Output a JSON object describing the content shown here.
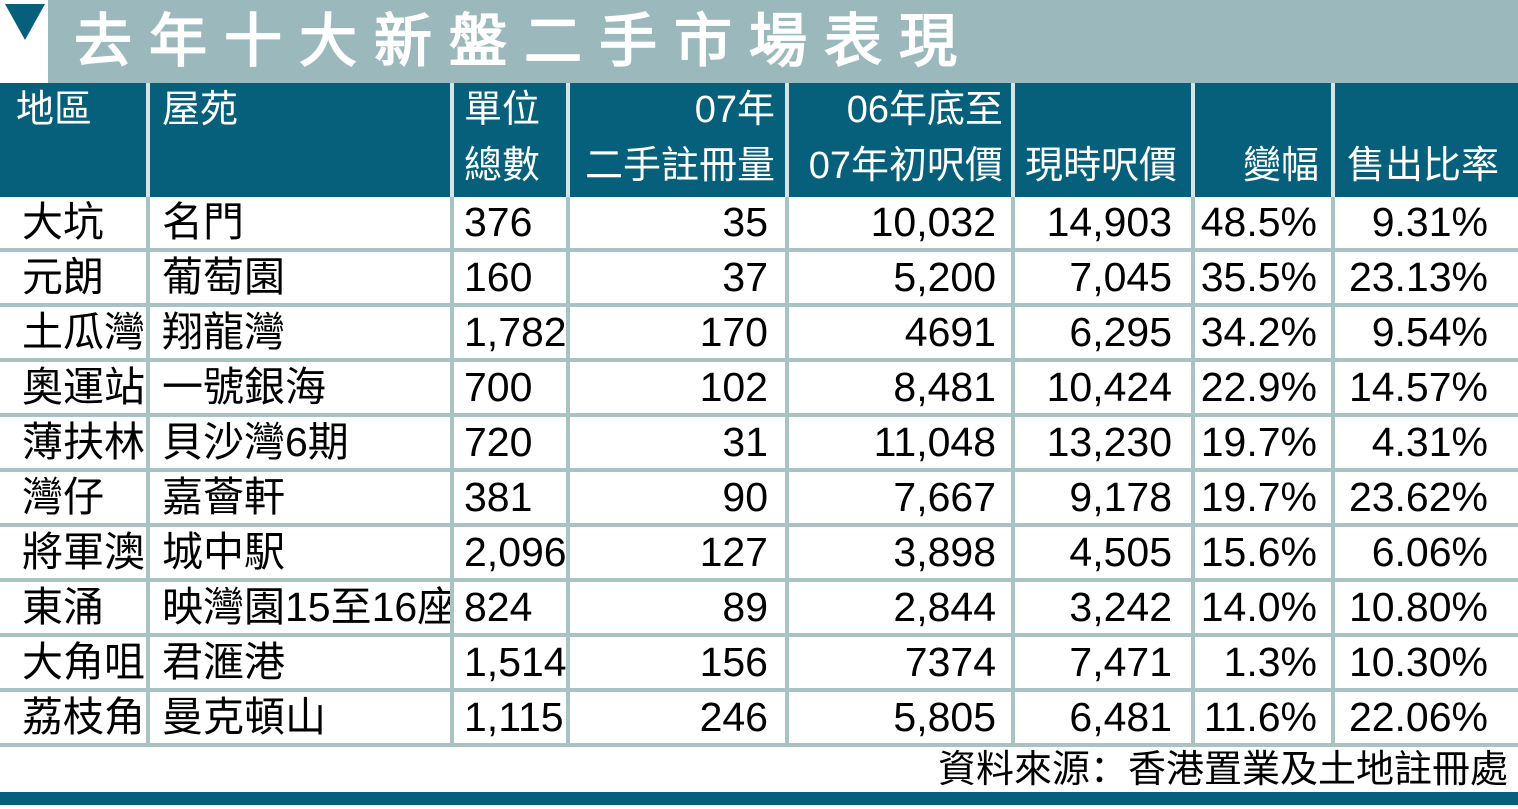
{
  "title": "去年十大新盤二手市場表現",
  "source": "資料來源：香港置業及土地註冊處",
  "colors": {
    "title_bg": "#9bb9bd",
    "header_bg": "#07607b",
    "divider": "#a9c3c4",
    "accent": "#07607b"
  },
  "chart_data": {
    "type": "table",
    "title": "去年十大新盤二手市場表現",
    "source": "資料來源：香港置業及土地註冊處",
    "columns": [
      {
        "line1": "地區",
        "line2": ""
      },
      {
        "line1": "屋苑",
        "line2": ""
      },
      {
        "line1": "單位",
        "line2": "總數"
      },
      {
        "line1": "07年",
        "line2": "二手註冊量"
      },
      {
        "line1": "06年底至",
        "line2": "07年初呎價"
      },
      {
        "line1": "",
        "line2": "現時呎價"
      },
      {
        "line1": "",
        "line2": "變幅"
      },
      {
        "line1": "",
        "line2": "售出比率"
      }
    ],
    "rows": [
      [
        "大坑",
        "名門",
        "376",
        "35",
        "10,032",
        "14,903",
        "48.5%",
        "9.31%"
      ],
      [
        "元朗",
        "葡萄園",
        "160",
        "37",
        "5,200",
        "7,045",
        "35.5%",
        "23.13%"
      ],
      [
        "土瓜灣",
        "翔龍灣",
        "1,782",
        "170",
        "4691",
        "6,295",
        "34.2%",
        "9.54%"
      ],
      [
        "奧運站",
        "一號銀海",
        "700",
        "102",
        "8,481",
        "10,424",
        "22.9%",
        "14.57%"
      ],
      [
        "薄扶林",
        "貝沙灣6期",
        "720",
        "31",
        "11,048",
        "13,230",
        "19.7%",
        "4.31%"
      ],
      [
        "灣仔",
        "嘉薈軒",
        "381",
        "90",
        "7,667",
        "9,178",
        "19.7%",
        "23.62%"
      ],
      [
        "將軍澳",
        "城中駅",
        "2,096",
        "127",
        "3,898",
        "4,505",
        "15.6%",
        "6.06%"
      ],
      [
        "東涌",
        "映灣園15至16座",
        "824",
        "89",
        "2,844",
        "3,242",
        "14.0%",
        "10.80%"
      ],
      [
        "大角咀",
        "君滙港",
        "1,514",
        "156",
        "7374",
        "7,471",
        "1.3%",
        "10.30%"
      ],
      [
        "荔枝角",
        "曼克頓山",
        "1,115",
        "246",
        "5,805",
        "6,481",
        "11.6%",
        "22.06%"
      ]
    ]
  }
}
